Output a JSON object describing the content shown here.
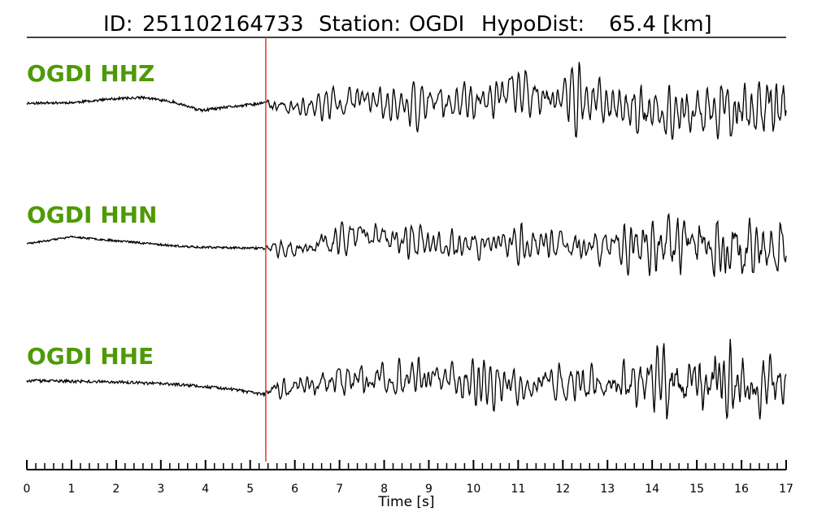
{
  "header": {
    "id_label": "ID:",
    "id_value": "251102164733",
    "station_label": "Station:",
    "station_value": "OGDI",
    "dist_label": "HypoDist:",
    "dist_value": "65.4",
    "dist_unit": "[km]"
  },
  "colors": {
    "trace": "#000000",
    "pick_line": "#e8382a",
    "channel_label": "#4e9a06",
    "axis": "#000000"
  },
  "chart_data": {
    "type": "line",
    "title": "ID: 251102164733   Station: OGDI   HypoDist:     65.4 [km]",
    "xlabel": "Time [s]",
    "ylabel": "",
    "xlim": [
      0,
      17
    ],
    "grid": false,
    "pick_time": 5.35,
    "x_ticks": [
      0,
      1,
      2,
      3,
      4,
      5,
      6,
      7,
      8,
      9,
      10,
      11,
      12,
      13,
      14,
      15,
      16,
      17
    ],
    "x_tick_labels": [
      "0",
      "1",
      "2",
      "3",
      "4",
      "5",
      "6",
      "7",
      "8",
      "9",
      "10",
      "11",
      "12",
      "13",
      "14",
      "15",
      "16",
      "17"
    ],
    "minor_tick_step": 0.2,
    "series": [
      {
        "name": "OGDI HHZ",
        "seed": 11,
        "envelope": [
          [
            0,
            0.04
          ],
          [
            5.3,
            0.05
          ],
          [
            5.4,
            0.18
          ],
          [
            7,
            0.28
          ],
          [
            10,
            0.34
          ],
          [
            12,
            0.42
          ],
          [
            14,
            0.5
          ],
          [
            15,
            0.6
          ],
          [
            17,
            0.66
          ]
        ],
        "drift": [
          [
            0,
            0.0
          ],
          [
            1,
            0.01
          ],
          [
            2,
            0.08
          ],
          [
            2.6,
            0.1
          ],
          [
            3.3,
            0.02
          ],
          [
            3.9,
            -0.13
          ],
          [
            4.6,
            -0.06
          ],
          [
            5.3,
            0.0
          ],
          [
            6,
            -0.1
          ],
          [
            7.5,
            0.08
          ],
          [
            8.5,
            -0.05
          ],
          [
            10,
            0.05
          ],
          [
            11,
            0.22
          ],
          [
            12.5,
            0.05
          ],
          [
            14,
            -0.15
          ],
          [
            15,
            -0.2
          ],
          [
            16.5,
            -0.05
          ],
          [
            17,
            0.05
          ]
        ]
      },
      {
        "name": "OGDI HHN",
        "seed": 23,
        "envelope": [
          [
            0,
            0.03
          ],
          [
            5.3,
            0.04
          ],
          [
            5.4,
            0.12
          ],
          [
            7,
            0.3
          ],
          [
            10,
            0.3
          ],
          [
            13,
            0.36
          ],
          [
            14.5,
            0.6
          ],
          [
            16,
            0.75
          ],
          [
            17,
            0.5
          ]
        ],
        "drift": [
          [
            0,
            0.0
          ],
          [
            1,
            0.12
          ],
          [
            2.5,
            0.02
          ],
          [
            3.5,
            -0.05
          ],
          [
            4.5,
            -0.07
          ],
          [
            5.3,
            -0.08
          ],
          [
            6,
            -0.1
          ],
          [
            7.5,
            0.15
          ],
          [
            9,
            -0.02
          ],
          [
            11,
            0.0
          ],
          [
            13,
            -0.05
          ],
          [
            15,
            0.0
          ],
          [
            17,
            -0.1
          ]
        ]
      },
      {
        "name": "OGDI HHE",
        "seed": 37,
        "envelope": [
          [
            0,
            0.05
          ],
          [
            5.3,
            0.05
          ],
          [
            5.4,
            0.2
          ],
          [
            7,
            0.35
          ],
          [
            10,
            0.4
          ],
          [
            13,
            0.45
          ],
          [
            14.5,
            0.7
          ],
          [
            16,
            0.75
          ],
          [
            17,
            0.6
          ]
        ],
        "drift": [
          [
            0,
            0.02
          ],
          [
            2,
            0.0
          ],
          [
            3.5,
            -0.05
          ],
          [
            4.5,
            -0.12
          ],
          [
            5.3,
            -0.22
          ],
          [
            6,
            -0.05
          ],
          [
            8,
            0.05
          ],
          [
            10,
            0.0
          ],
          [
            12,
            -0.05
          ],
          [
            14,
            0.02
          ],
          [
            16,
            0.0
          ],
          [
            17,
            0.05
          ]
        ]
      }
    ]
  }
}
